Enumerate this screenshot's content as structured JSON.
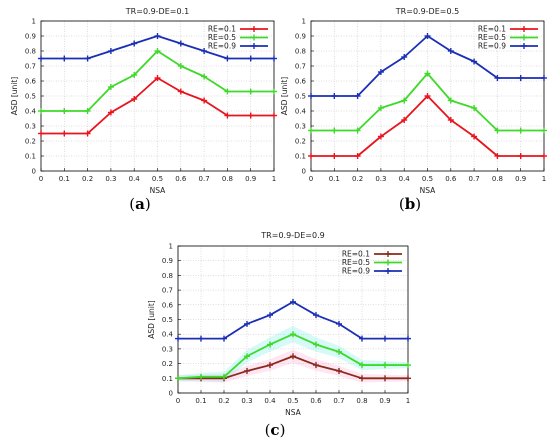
{
  "chart_data": [
    {
      "type": "line",
      "caption_letter": "a",
      "title": "TR=0.9-DE=0.1",
      "xlabel": "NSA",
      "ylabel": "ASD [unit]",
      "xlim": [
        0,
        1
      ],
      "ylim": [
        0,
        1
      ],
      "x_ticks": [
        "0",
        "0.1",
        "0.2",
        "0.3",
        "0.4",
        "0.5",
        "0.6",
        "0.7",
        "0.8",
        "0.9",
        "1"
      ],
      "y_ticks": [
        "0",
        "0.1",
        "0.2",
        "0.3",
        "0.4",
        "0.5",
        "0.6",
        "0.7",
        "0.8",
        "0.9",
        "1"
      ],
      "grid": true,
      "legend_position": "top-right",
      "x": [
        0,
        0.1,
        0.2,
        0.3,
        0.4,
        0.5,
        0.6,
        0.7,
        0.8,
        0.9,
        1
      ],
      "series": [
        {
          "name": "RE=0.1",
          "color": "#e8141e",
          "values": [
            0.25,
            0.25,
            0.25,
            0.39,
            0.48,
            0.62,
            0.53,
            0.47,
            0.37,
            0.37,
            0.37
          ]
        },
        {
          "name": "RE=0.5",
          "color": "#3fd92a",
          "values": [
            0.4,
            0.4,
            0.4,
            0.56,
            0.64,
            0.8,
            0.7,
            0.63,
            0.53,
            0.53,
            0.53
          ]
        },
        {
          "name": "RE=0.9",
          "color": "#1b2fb6",
          "values": [
            0.75,
            0.75,
            0.75,
            0.8,
            0.85,
            0.9,
            0.85,
            0.8,
            0.75,
            0.75,
            0.75
          ]
        }
      ]
    },
    {
      "type": "line",
      "caption_letter": "b",
      "title": "TR=0.9-DE=0.5",
      "xlabel": "NSA",
      "ylabel": "ASD [unit]",
      "xlim": [
        0,
        1
      ],
      "ylim": [
        0,
        1
      ],
      "x_ticks": [
        "0",
        "0.1",
        "0.2",
        "0.3",
        "0.4",
        "0.5",
        "0.6",
        "0.7",
        "0.8",
        "0.9",
        "1"
      ],
      "y_ticks": [
        "0",
        "0.1",
        "0.2",
        "0.3",
        "0.4",
        "0.5",
        "0.6",
        "0.7",
        "0.8",
        "0.9",
        "1"
      ],
      "grid": true,
      "legend_position": "top-right",
      "x": [
        0,
        0.1,
        0.2,
        0.3,
        0.4,
        0.5,
        0.6,
        0.7,
        0.8,
        0.9,
        1
      ],
      "series": [
        {
          "name": "RE=0.1",
          "color": "#e8141e",
          "values": [
            0.1,
            0.1,
            0.1,
            0.23,
            0.34,
            0.5,
            0.34,
            0.23,
            0.1,
            0.1,
            0.1
          ]
        },
        {
          "name": "RE=0.5",
          "color": "#3fd92a",
          "values": [
            0.27,
            0.27,
            0.27,
            0.42,
            0.47,
            0.65,
            0.47,
            0.42,
            0.27,
            0.27,
            0.27
          ]
        },
        {
          "name": "RE=0.9",
          "color": "#1b2fb6",
          "values": [
            0.5,
            0.5,
            0.5,
            0.66,
            0.76,
            0.9,
            0.8,
            0.73,
            0.62,
            0.62,
            0.62
          ]
        }
      ]
    },
    {
      "type": "line",
      "caption_letter": "c",
      "title": "TR=0.9-DE=0.9",
      "xlabel": "NSA",
      "ylabel": "ASD [unit]",
      "xlim": [
        0,
        1
      ],
      "ylim": [
        0,
        1
      ],
      "x_ticks": [
        "0",
        "0.1",
        "0.2",
        "0.3",
        "0.4",
        "0.5",
        "0.6",
        "0.7",
        "0.8",
        "0.9",
        "1"
      ],
      "y_ticks": [
        "0",
        "0.1",
        "0.2",
        "0.3",
        "0.4",
        "0.5",
        "0.6",
        "0.7",
        "0.8",
        "0.9",
        "1"
      ],
      "grid": true,
      "legend_position": "top-right",
      "x": [
        0,
        0.1,
        0.2,
        0.3,
        0.4,
        0.5,
        0.6,
        0.7,
        0.8,
        0.9,
        1
      ],
      "series": [
        {
          "name": "RE=0.1",
          "color": "#8a2a1a",
          "values": [
            0.1,
            0.1,
            0.1,
            0.15,
            0.19,
            0.25,
            0.19,
            0.15,
            0.1,
            0.1,
            0.1
          ]
        },
        {
          "name": "RE=0.5",
          "color": "#3fd92a",
          "values": [
            0.1,
            0.11,
            0.11,
            0.25,
            0.33,
            0.4,
            0.33,
            0.28,
            0.19,
            0.19,
            0.19
          ]
        },
        {
          "name": "RE=0.9",
          "color": "#1b2fb6",
          "values": [
            0.37,
            0.37,
            0.37,
            0.47,
            0.53,
            0.62,
            0.53,
            0.47,
            0.37,
            0.37,
            0.37
          ]
        }
      ]
    }
  ]
}
